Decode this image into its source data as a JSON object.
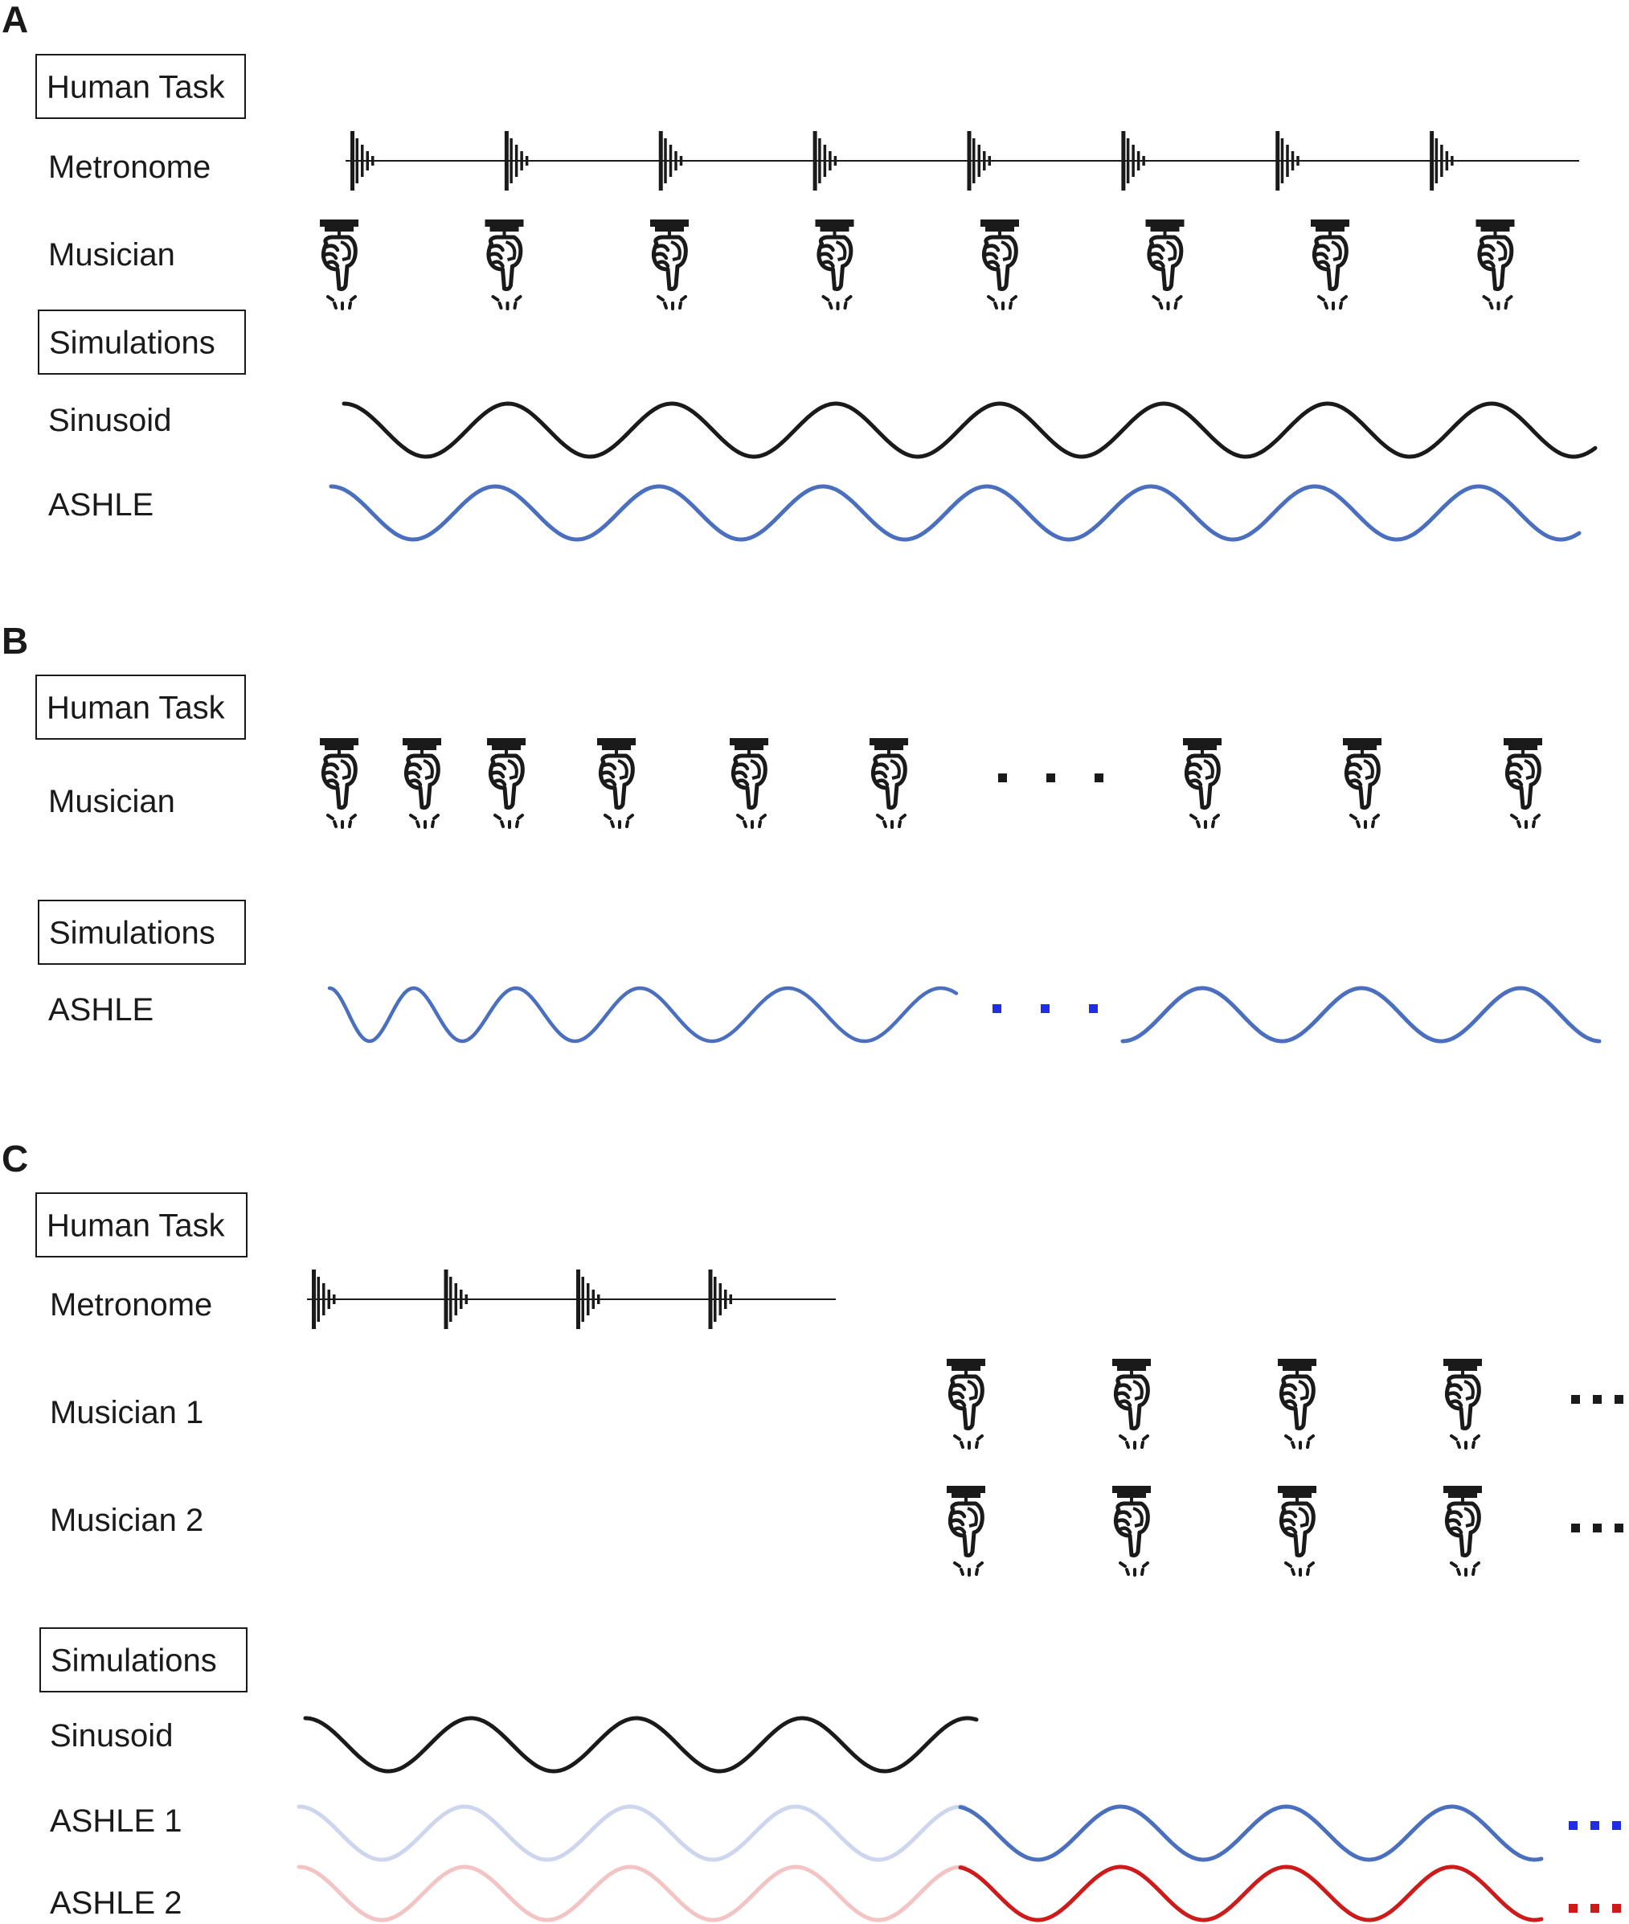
{
  "colors": {
    "ink": "#1a1a1a",
    "sinusoid": "#1a1a1a",
    "ashle": "#4a6fbf",
    "ashle_faded": "#cdd6ee",
    "ashle2": "#cc1b1b",
    "ashle2_faded": "#f2c4c4",
    "dots_blue": "#1f2ee0",
    "dots_red": "#cc1b1b"
  },
  "panels": [
    {
      "id": "A",
      "letter": "A",
      "boxes": [
        "Human Task",
        "Simulations"
      ],
      "rows": [
        "Metronome",
        "Musician",
        "Sinusoid",
        "ASHLE"
      ],
      "beats": 8
    },
    {
      "id": "B",
      "letter": "B",
      "boxes": [
        "Human Task",
        "Simulations"
      ],
      "rows": [
        "Musician",
        "ASHLE"
      ],
      "beats_before_gap": 6,
      "beats_after_gap": 3
    },
    {
      "id": "C",
      "letter": "C",
      "boxes": [
        "Human Task",
        "Simulations"
      ],
      "rows": [
        "Metronome",
        "Musician 1",
        "Musician 2",
        "Sinusoid",
        "ASHLE 1",
        "ASHLE 2"
      ],
      "metronome_beats": 4,
      "musician_beats": 4
    }
  ],
  "icons": {
    "metronome": "metronome-click-icon",
    "musician": "finger-tap-icon",
    "continuation": "ellipsis-dots"
  }
}
